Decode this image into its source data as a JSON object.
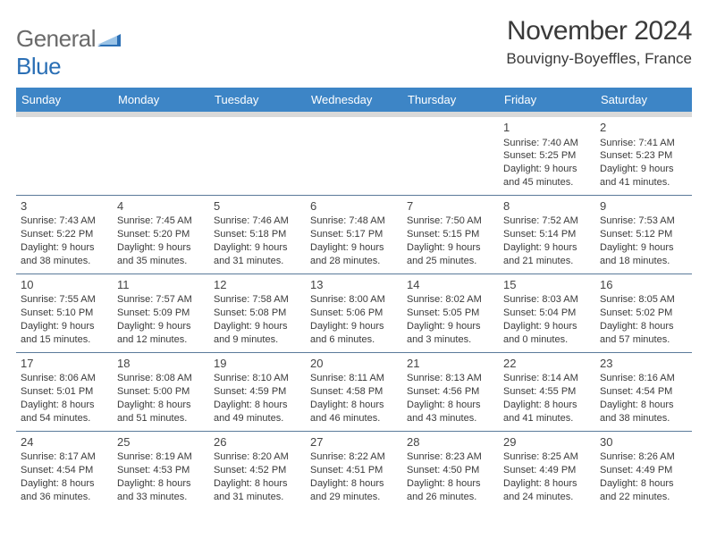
{
  "brand": {
    "general": "General",
    "blue": "Blue"
  },
  "title": {
    "month_year": "November 2024",
    "location": "Bouvigny-Boyeffles, France"
  },
  "colors": {
    "header_bg": "#3d85c6",
    "header_text": "#ffffff",
    "header_underline": "#d9d9d9",
    "cell_rule": "#5a7a9a",
    "body_text": "#3a3a3a",
    "logo_gray": "#6a6a6a",
    "logo_blue": "#2a6fb5"
  },
  "day_headers": [
    "Sunday",
    "Monday",
    "Tuesday",
    "Wednesday",
    "Thursday",
    "Friday",
    "Saturday"
  ],
  "weeks": [
    [
      null,
      null,
      null,
      null,
      null,
      {
        "n": "1",
        "sr": "7:40 AM",
        "ss": "5:25 PM",
        "dl": "9 hours and 45 minutes."
      },
      {
        "n": "2",
        "sr": "7:41 AM",
        "ss": "5:23 PM",
        "dl": "9 hours and 41 minutes."
      }
    ],
    [
      {
        "n": "3",
        "sr": "7:43 AM",
        "ss": "5:22 PM",
        "dl": "9 hours and 38 minutes."
      },
      {
        "n": "4",
        "sr": "7:45 AM",
        "ss": "5:20 PM",
        "dl": "9 hours and 35 minutes."
      },
      {
        "n": "5",
        "sr": "7:46 AM",
        "ss": "5:18 PM",
        "dl": "9 hours and 31 minutes."
      },
      {
        "n": "6",
        "sr": "7:48 AM",
        "ss": "5:17 PM",
        "dl": "9 hours and 28 minutes."
      },
      {
        "n": "7",
        "sr": "7:50 AM",
        "ss": "5:15 PM",
        "dl": "9 hours and 25 minutes."
      },
      {
        "n": "8",
        "sr": "7:52 AM",
        "ss": "5:14 PM",
        "dl": "9 hours and 21 minutes."
      },
      {
        "n": "9",
        "sr": "7:53 AM",
        "ss": "5:12 PM",
        "dl": "9 hours and 18 minutes."
      }
    ],
    [
      {
        "n": "10",
        "sr": "7:55 AM",
        "ss": "5:10 PM",
        "dl": "9 hours and 15 minutes."
      },
      {
        "n": "11",
        "sr": "7:57 AM",
        "ss": "5:09 PM",
        "dl": "9 hours and 12 minutes."
      },
      {
        "n": "12",
        "sr": "7:58 AM",
        "ss": "5:08 PM",
        "dl": "9 hours and 9 minutes."
      },
      {
        "n": "13",
        "sr": "8:00 AM",
        "ss": "5:06 PM",
        "dl": "9 hours and 6 minutes."
      },
      {
        "n": "14",
        "sr": "8:02 AM",
        "ss": "5:05 PM",
        "dl": "9 hours and 3 minutes."
      },
      {
        "n": "15",
        "sr": "8:03 AM",
        "ss": "5:04 PM",
        "dl": "9 hours and 0 minutes."
      },
      {
        "n": "16",
        "sr": "8:05 AM",
        "ss": "5:02 PM",
        "dl": "8 hours and 57 minutes."
      }
    ],
    [
      {
        "n": "17",
        "sr": "8:06 AM",
        "ss": "5:01 PM",
        "dl": "8 hours and 54 minutes."
      },
      {
        "n": "18",
        "sr": "8:08 AM",
        "ss": "5:00 PM",
        "dl": "8 hours and 51 minutes."
      },
      {
        "n": "19",
        "sr": "8:10 AM",
        "ss": "4:59 PM",
        "dl": "8 hours and 49 minutes."
      },
      {
        "n": "20",
        "sr": "8:11 AM",
        "ss": "4:58 PM",
        "dl": "8 hours and 46 minutes."
      },
      {
        "n": "21",
        "sr": "8:13 AM",
        "ss": "4:56 PM",
        "dl": "8 hours and 43 minutes."
      },
      {
        "n": "22",
        "sr": "8:14 AM",
        "ss": "4:55 PM",
        "dl": "8 hours and 41 minutes."
      },
      {
        "n": "23",
        "sr": "8:16 AM",
        "ss": "4:54 PM",
        "dl": "8 hours and 38 minutes."
      }
    ],
    [
      {
        "n": "24",
        "sr": "8:17 AM",
        "ss": "4:54 PM",
        "dl": "8 hours and 36 minutes."
      },
      {
        "n": "25",
        "sr": "8:19 AM",
        "ss": "4:53 PM",
        "dl": "8 hours and 33 minutes."
      },
      {
        "n": "26",
        "sr": "8:20 AM",
        "ss": "4:52 PM",
        "dl": "8 hours and 31 minutes."
      },
      {
        "n": "27",
        "sr": "8:22 AM",
        "ss": "4:51 PM",
        "dl": "8 hours and 29 minutes."
      },
      {
        "n": "28",
        "sr": "8:23 AM",
        "ss": "4:50 PM",
        "dl": "8 hours and 26 minutes."
      },
      {
        "n": "29",
        "sr": "8:25 AM",
        "ss": "4:49 PM",
        "dl": "8 hours and 24 minutes."
      },
      {
        "n": "30",
        "sr": "8:26 AM",
        "ss": "4:49 PM",
        "dl": "8 hours and 22 minutes."
      }
    ]
  ],
  "labels": {
    "sunrise": "Sunrise: ",
    "sunset": "Sunset: ",
    "daylight": "Daylight: "
  }
}
